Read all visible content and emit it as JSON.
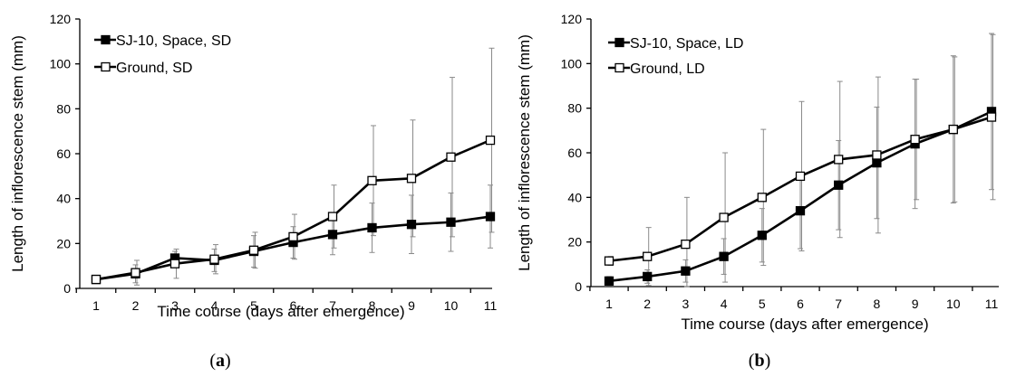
{
  "chart_data": [
    {
      "type": "line",
      "panel_label_open": "(",
      "panel_label_letter": "a",
      "panel_label_close": ")",
      "xlabel": "Time course (days after emergence)",
      "ylabel": "Length of inflorescence stem (mm)",
      "x": [
        1,
        2,
        3,
        4,
        5,
        6,
        7,
        8,
        9,
        10,
        11
      ],
      "x_ticks": [
        "1",
        "2",
        "3",
        "4",
        "5",
        "6",
        "7",
        "8",
        "9",
        "10",
        "11"
      ],
      "ylim": [
        0,
        120
      ],
      "y_ticks": [
        "0",
        "20",
        "40",
        "60",
        "80",
        "100",
        "120"
      ],
      "legend_position": "top-left",
      "series": [
        {
          "name": "SJ-10, Space, SD",
          "marker": "filled-square",
          "values": [
            4,
            6.5,
            13.5,
            12.5,
            16.5,
            20.5,
            24,
            27,
            28.5,
            29.5,
            32
          ],
          "error": [
            0.8,
            4,
            3,
            5,
            7,
            7,
            9,
            11,
            13,
            13,
            14
          ]
        },
        {
          "name": "Ground, SD",
          "marker": "open-square",
          "values": [
            4,
            7,
            11,
            13,
            17,
            23,
            32,
            48,
            49,
            58.5,
            66
          ],
          "error": [
            0.8,
            5.5,
            6.5,
            6.5,
            8,
            10,
            14,
            24.5,
            26,
            35.5,
            41
          ]
        }
      ]
    },
    {
      "type": "line",
      "panel_label_open": "(",
      "panel_label_letter": "b",
      "panel_label_close": ")",
      "xlabel": "Time course (days after emergence)",
      "ylabel": "Length of inflorescence stem (mm)",
      "x": [
        1,
        2,
        3,
        4,
        5,
        6,
        7,
        8,
        9,
        10,
        11
      ],
      "x_ticks": [
        "1",
        "2",
        "3",
        "4",
        "5",
        "6",
        "7",
        "8",
        "9",
        "10",
        "11"
      ],
      "ylim": [
        0,
        120
      ],
      "y_ticks": [
        "0",
        "20",
        "40",
        "60",
        "80",
        "100",
        "120"
      ],
      "legend_position": "top-left",
      "series": [
        {
          "name": "SJ-10, Space, LD",
          "marker": "filled-square",
          "values": [
            2.5,
            4.5,
            7,
            13.5,
            23,
            34,
            45.5,
            55.5,
            64,
            70.5,
            78.5
          ],
          "error": [
            2,
            3,
            5,
            8,
            12,
            17,
            20,
            25,
            29,
            33,
            35
          ]
        },
        {
          "name": "Ground, LD",
          "marker": "open-square",
          "values": [
            11.5,
            13.5,
            19,
            31,
            40,
            49.5,
            57,
            59,
            66,
            70.5,
            76
          ],
          "error": [
            2,
            13,
            21,
            29,
            30.5,
            33.5,
            35,
            35,
            27,
            32.5,
            37
          ]
        }
      ]
    }
  ]
}
